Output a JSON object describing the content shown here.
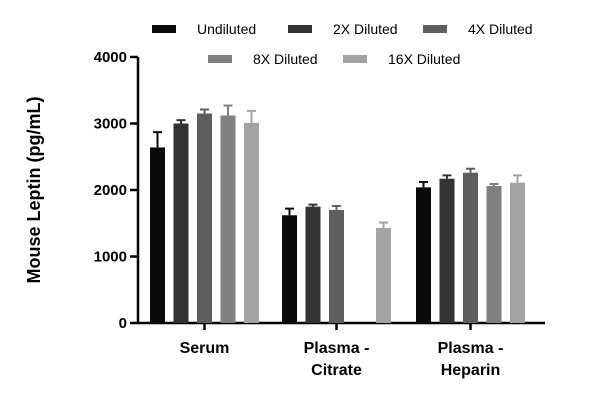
{
  "chart_data": {
    "type": "bar",
    "ylabel": "Mouse Leptin (pg/mL)",
    "ylim": [
      0,
      4000
    ],
    "yticks": [
      0,
      1000,
      2000,
      3000,
      4000
    ],
    "categories": [
      [
        "Serum"
      ],
      [
        "Plasma -",
        "Citrate"
      ],
      [
        "Plasma -",
        "Heparin"
      ]
    ],
    "legend_position": "top",
    "series": [
      {
        "name": "Undiluted",
        "color": "#0a0a0a",
        "values": [
          2640,
          1620,
          2040
        ],
        "errors": [
          230,
          100,
          80
        ]
      },
      {
        "name": "2X Diluted",
        "color": "#333333",
        "values": [
          3000,
          1750,
          2170
        ],
        "errors": [
          50,
          30,
          50
        ]
      },
      {
        "name": "4X Diluted",
        "color": "#5e5e5e",
        "values": [
          3150,
          1700,
          2260
        ],
        "errors": [
          60,
          60,
          60
        ]
      },
      {
        "name": "8X Diluted",
        "color": "#808080",
        "values": [
          3120,
          null,
          2060
        ],
        "errors": [
          150,
          null,
          30
        ]
      },
      {
        "name": "16X Diluted",
        "color": "#a3a3a3",
        "values": [
          3010,
          1430,
          2110
        ],
        "errors": [
          180,
          80,
          110
        ]
      }
    ]
  }
}
